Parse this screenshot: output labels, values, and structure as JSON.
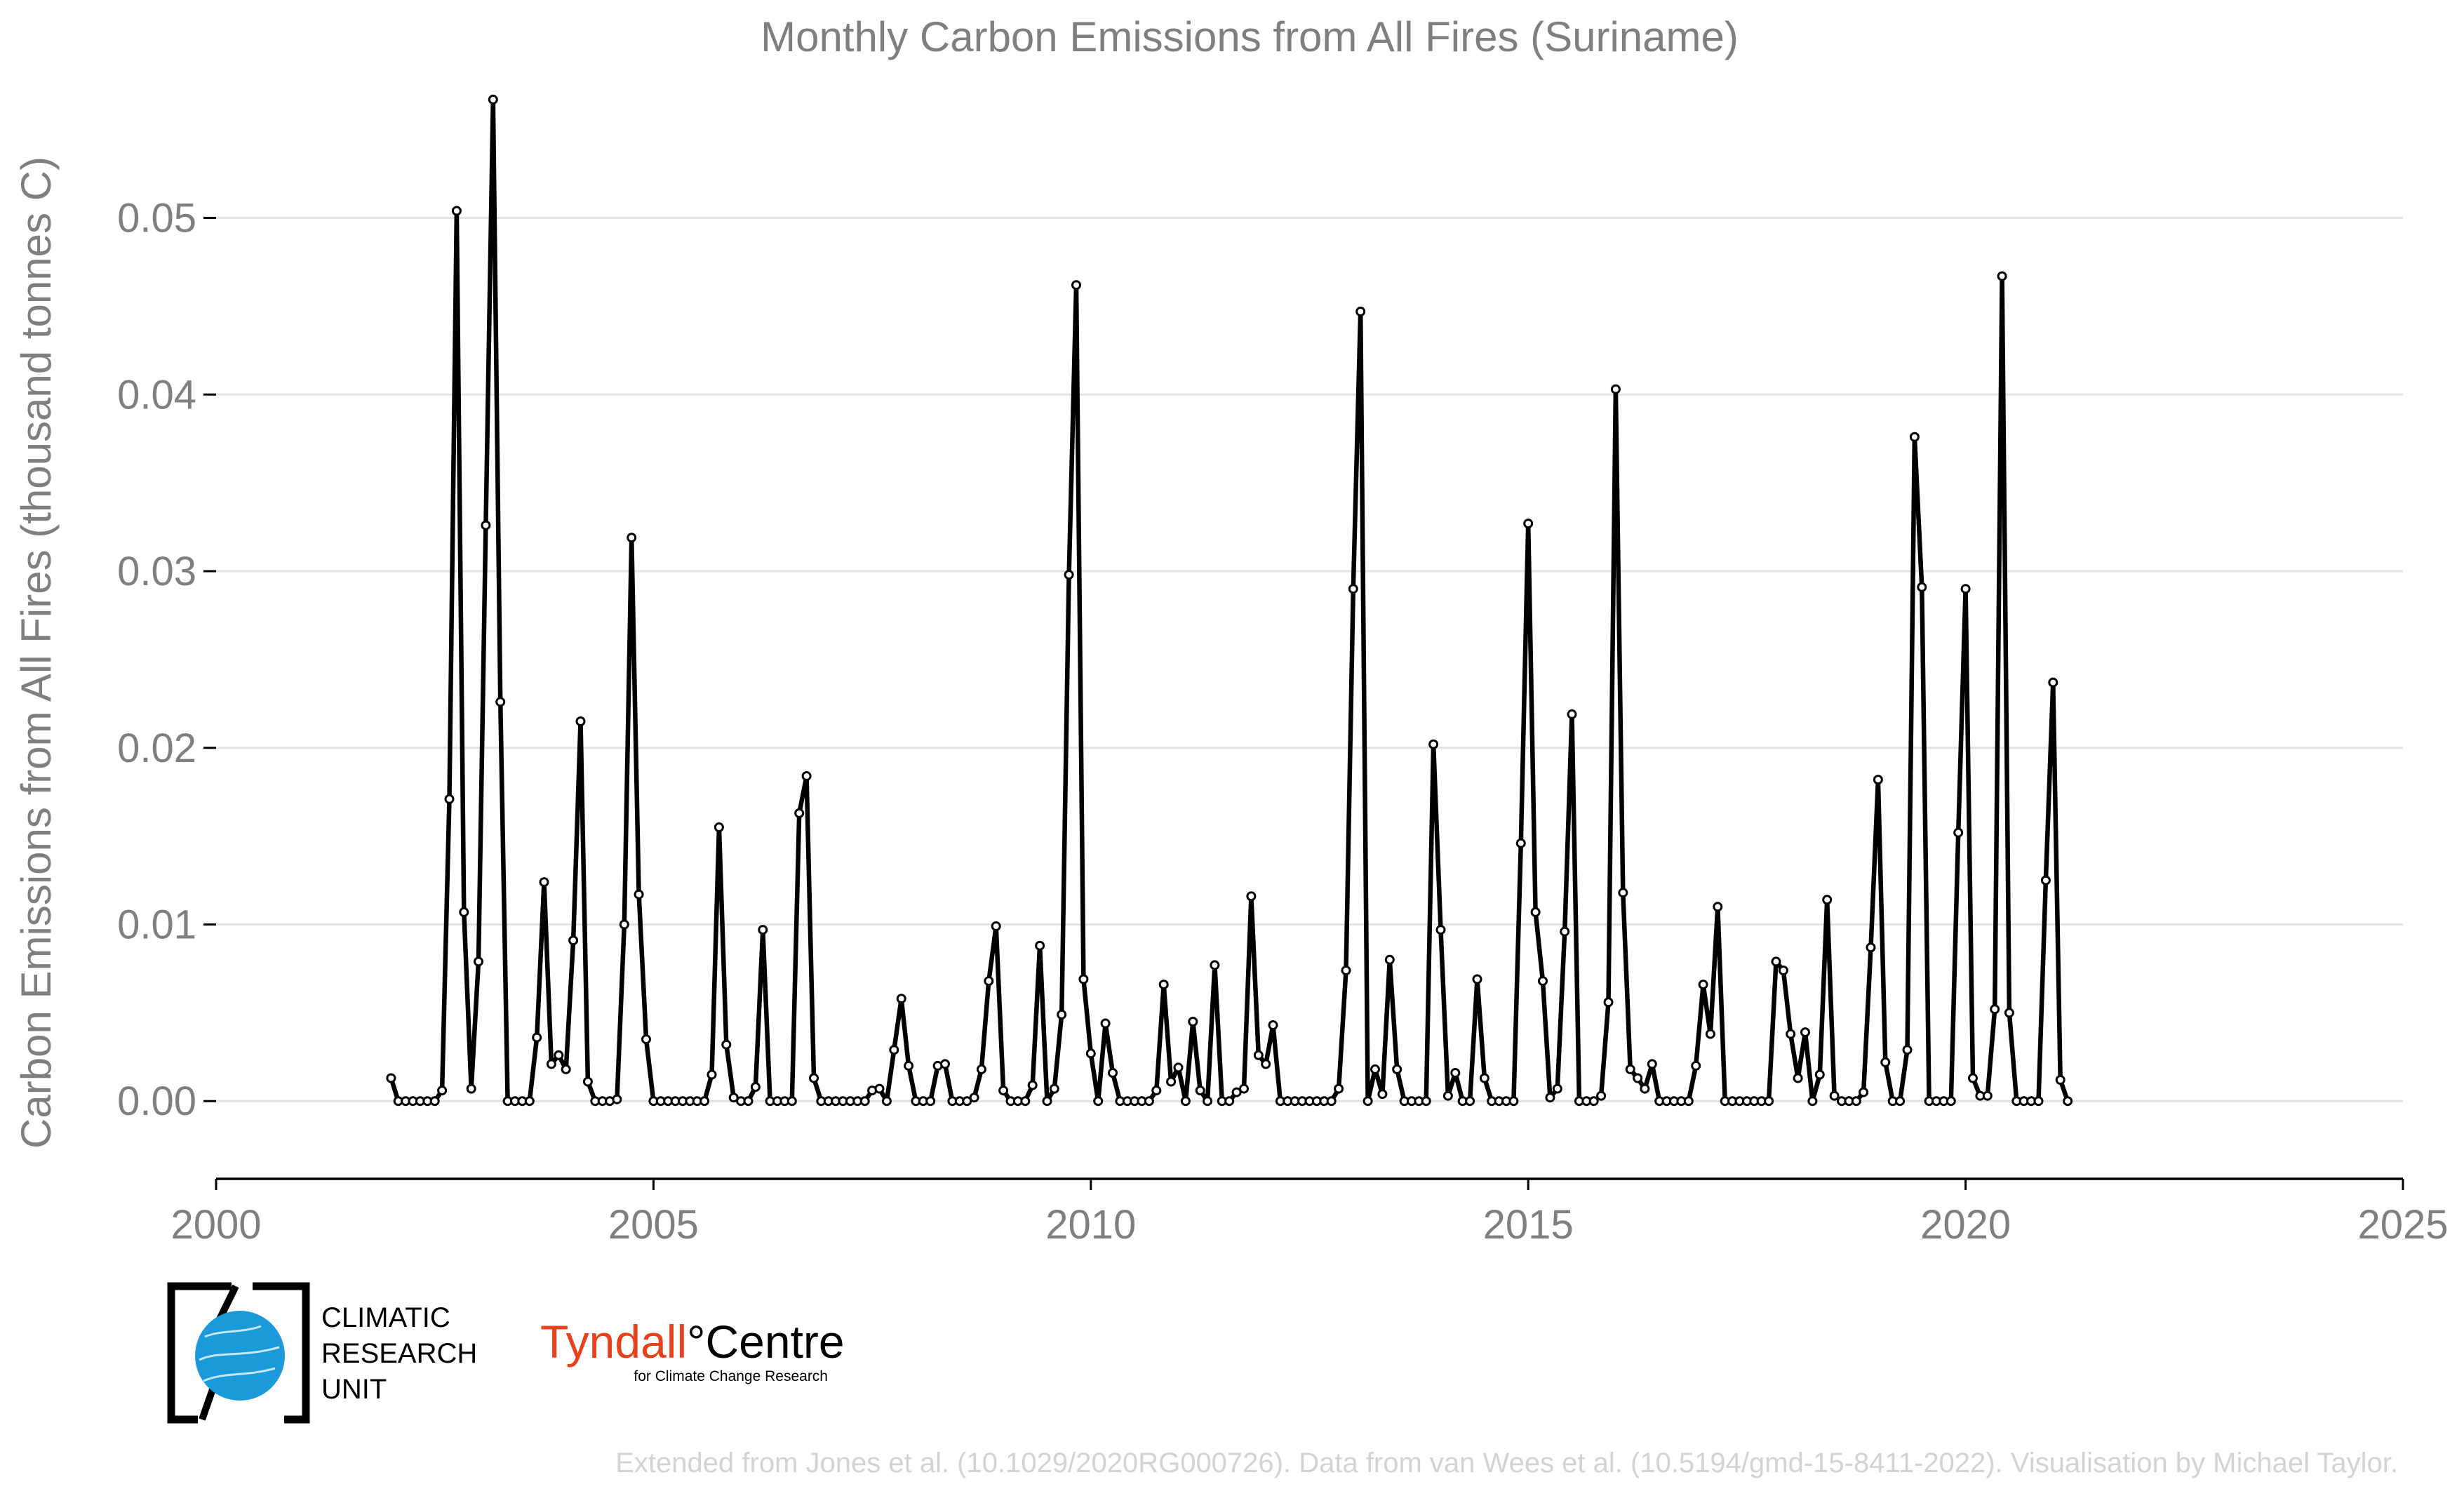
{
  "chart_data": {
    "type": "line",
    "title": "Monthly Carbon Emissions from All Fires (Suriname)",
    "xlabel": "",
    "ylabel": "Carbon Emissions from All Fires (thousand tonnes C)",
    "xlim": [
      2000,
      2025
    ],
    "ylim": [
      -0.0044,
      0.059
    ],
    "x_ticks": [
      "2000",
      "2005",
      "2010",
      "2015",
      "2020",
      "2025"
    ],
    "y_ticks": [
      "0.00",
      "0.01",
      "0.02",
      "0.03",
      "0.04",
      "0.05"
    ],
    "grid": "horizontal",
    "start_year": 2002,
    "series": [
      {
        "values": [
          0.0013,
          0.0,
          0.0,
          0.0,
          0.0,
          0.0,
          0.0,
          0.0006,
          0.0171,
          0.0504,
          0.0107,
          0.0007,
          0.0079,
          0.0326,
          0.0567,
          0.0226,
          0.0,
          0.0,
          0.0,
          0.0,
          0.0036,
          0.0124,
          0.0021,
          0.0026,
          0.0018,
          0.0091,
          0.0215,
          0.0011,
          0.0,
          0.0,
          0.0,
          0.0001,
          0.01,
          0.0319,
          0.0117,
          0.0035,
          0.0,
          0.0,
          0.0,
          0.0,
          0.0,
          0.0,
          0.0,
          0.0,
          0.0015,
          0.0155,
          0.0032,
          0.0002,
          0.0,
          0.0,
          0.0008,
          0.0097,
          0.0,
          0.0,
          0.0,
          0.0,
          0.0163,
          0.0184,
          0.0013,
          0.0,
          0.0,
          0.0,
          0.0,
          0.0,
          0.0,
          0.0,
          0.0006,
          0.0007,
          0.0,
          0.0029,
          0.0058,
          0.002,
          0.0,
          0.0,
          0.0,
          0.002,
          0.0021,
          0.0,
          0.0,
          0.0,
          0.0002,
          0.0018,
          0.0068,
          0.0099,
          0.0006,
          0.0,
          0.0,
          0.0,
          0.0009,
          0.0088,
          0.0,
          0.0007,
          0.0049,
          0.0298,
          0.0462,
          0.0069,
          0.0027,
          0.0,
          0.0044,
          0.0016,
          0.0,
          0.0,
          0.0,
          0.0,
          0.0,
          0.0006,
          0.0066,
          0.0011,
          0.0019,
          0.0,
          0.0045,
          0.0006,
          0.0,
          0.0077,
          0.0,
          0.0,
          0.0005,
          0.0007,
          0.0116,
          0.0026,
          0.0021,
          0.0043,
          0.0,
          0.0,
          0.0,
          0.0,
          0.0,
          0.0,
          0.0,
          0.0,
          0.0007,
          0.0074,
          0.029,
          0.0447,
          0.0,
          0.0018,
          0.0004,
          0.008,
          0.0018,
          0.0,
          0.0,
          0.0,
          0.0,
          0.0202,
          0.0097,
          0.0003,
          0.0016,
          0.0,
          0.0,
          0.0069,
          0.0013,
          0.0,
          0.0,
          0.0,
          0.0,
          0.0146,
          0.0327,
          0.0107,
          0.0068,
          0.0002,
          0.0007,
          0.0096,
          0.0219,
          0.0,
          0.0,
          0.0,
          0.0003,
          0.0056,
          0.0403,
          0.0118,
          0.0018,
          0.0013,
          0.0007,
          0.0021,
          0.0,
          0.0,
          0.0,
          0.0,
          0.0,
          0.002,
          0.0066,
          0.0038,
          0.011,
          0.0,
          0.0,
          0.0,
          0.0,
          0.0,
          0.0,
          0.0,
          0.0079,
          0.0074,
          0.0038,
          0.0013,
          0.0039,
          0.0,
          0.0015,
          0.0114,
          0.0003,
          0.0,
          0.0,
          0.0,
          0.0005,
          0.0087,
          0.0182,
          0.0022,
          0.0,
          0.0,
          0.0029,
          0.0376,
          0.0291,
          0.0,
          0.0,
          0.0,
          0.0,
          0.0152,
          0.029,
          0.0013,
          0.0003,
          0.0003,
          0.0052,
          0.0467,
          0.005,
          0.0,
          0.0,
          0.0,
          0.0,
          0.0125,
          0.0237,
          0.0012,
          0.0
        ]
      }
    ]
  },
  "footer": {
    "credit": "Extended from Jones et al. (10.1029/2020RG000726). Data from van Wees et al. (10.5194/gmd-15-8411-2022). Visualisation by Michael Taylor."
  },
  "logos": {
    "cru": {
      "line1": "CLIMATIC",
      "line2": "RESEARCH",
      "line3": "UNIT"
    },
    "tyndall": {
      "part1": "Tyndall",
      "part2": "°Centre",
      "subtitle": "for Climate Change Research"
    }
  }
}
